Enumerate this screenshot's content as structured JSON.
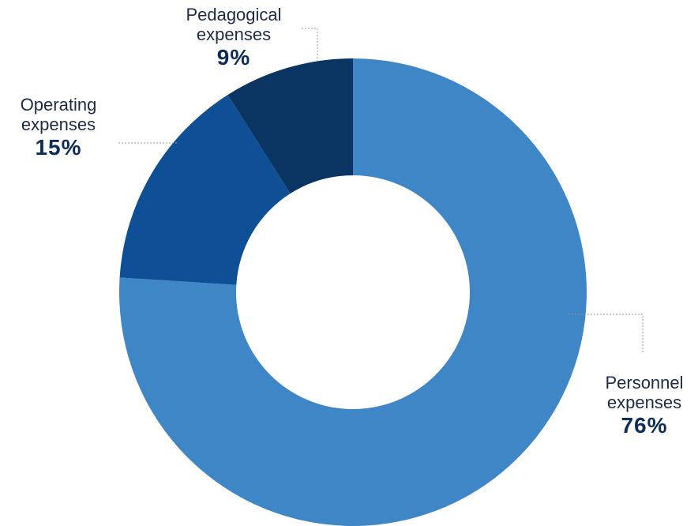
{
  "chart_data": {
    "type": "pie",
    "donut": true,
    "title": "",
    "slices": [
      {
        "label_line1": "Personnel",
        "label_line2": "expenses",
        "value": 76,
        "value_text": "76%",
        "color": "#3f86c6"
      },
      {
        "label_line1": "Operating",
        "label_line2": "expenses",
        "value": 15,
        "value_text": "15%",
        "color": "#0e4f95"
      },
      {
        "label_line1": "Pedagogical",
        "label_line2": "expenses",
        "value": 9,
        "value_text": "9%",
        "color": "#0a3461"
      }
    ],
    "start_angle_deg": 0,
    "direction": "clockwise",
    "legend": "none"
  }
}
